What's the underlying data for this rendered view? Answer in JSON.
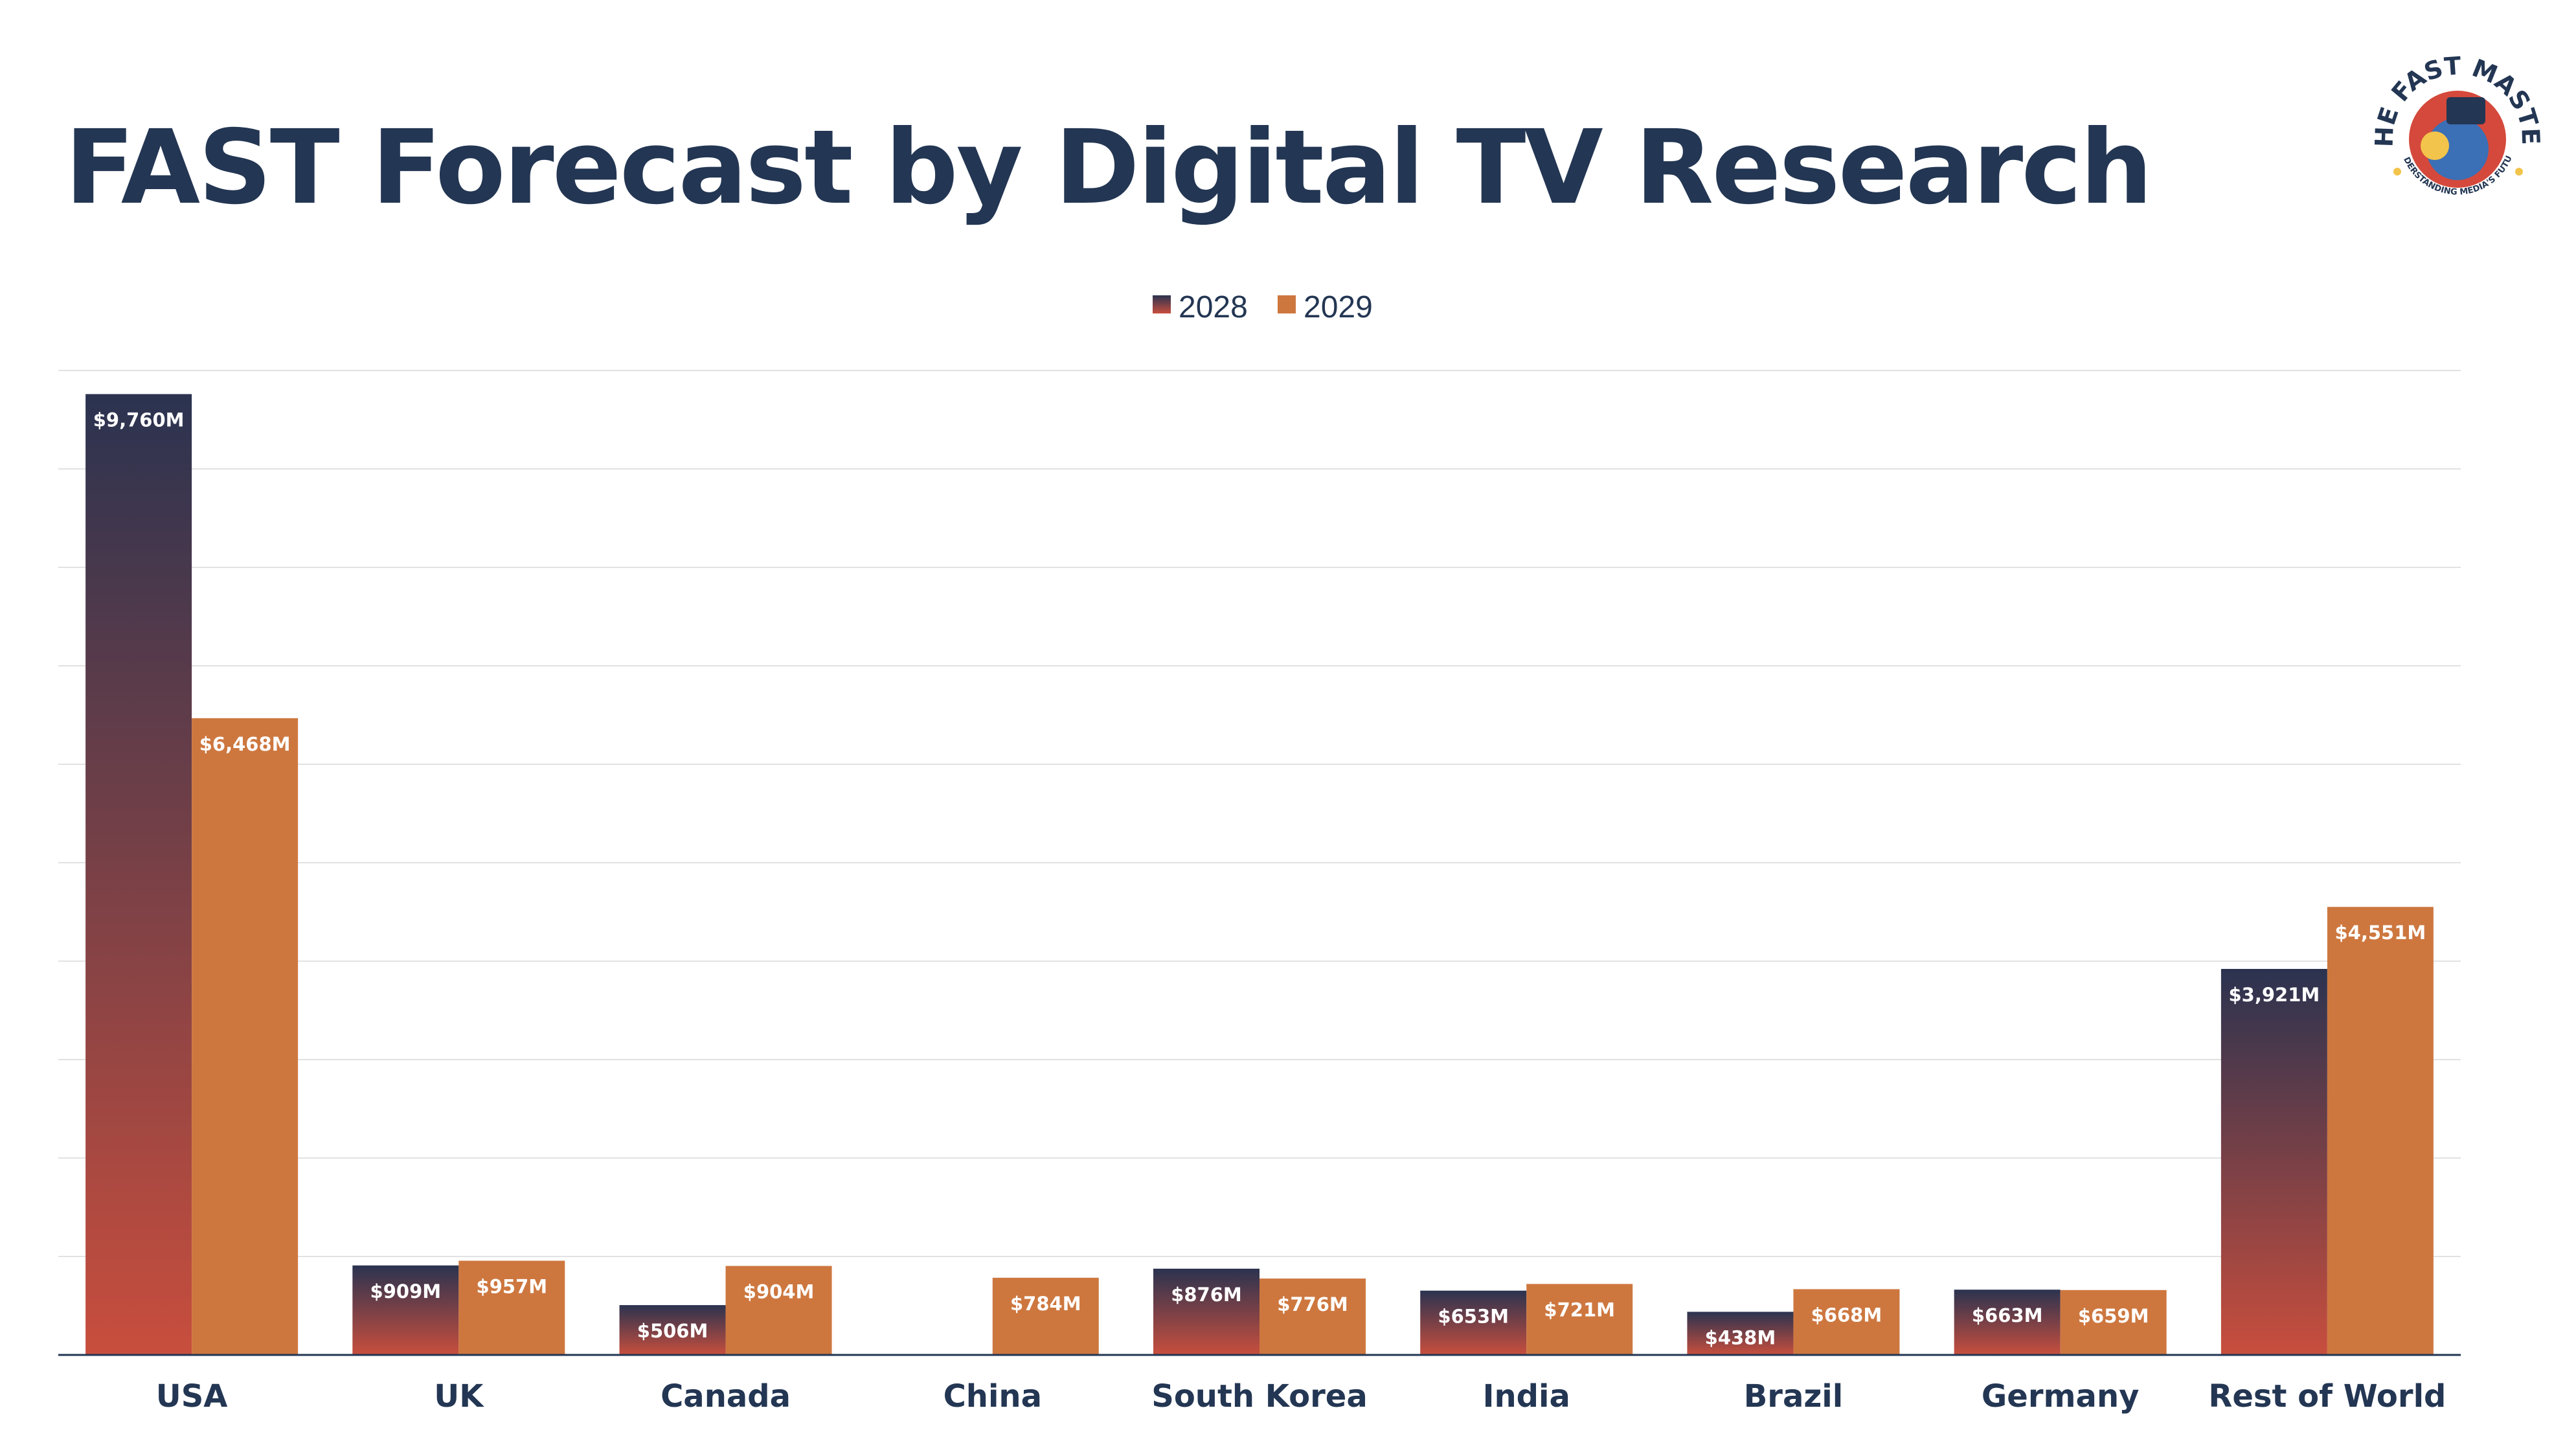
{
  "chart_data": {
    "type": "bar",
    "title": "FAST Forecast by Digital TV Research",
    "categories": [
      "USA",
      "UK",
      "Canada",
      "China",
      "South Korea",
      "India",
      "Brazil",
      "Germany",
      "Rest of World"
    ],
    "series": [
      {
        "name": "2028",
        "values": [
          9760,
          909,
          506,
          null,
          876,
          653,
          438,
          663,
          3921
        ],
        "labels": [
          "$9,760M",
          "$909M",
          "$506M",
          "",
          "$876M",
          "$653M",
          "$438M",
          "$663M",
          "$3,921M"
        ]
      },
      {
        "name": "2029",
        "values": [
          6468,
          957,
          904,
          784,
          776,
          721,
          668,
          659,
          4551
        ],
        "labels": [
          "$6,468M",
          "$957M",
          "$904M",
          "$784M",
          "$776M",
          "$721M",
          "$668M",
          "$659M",
          "$4,551M"
        ]
      }
    ],
    "ylim": [
      0,
      10000
    ],
    "unit": "$M",
    "grid": true,
    "legend": "top-center",
    "xlabel": "",
    "ylabel": ""
  },
  "colors": {
    "title": "#233653",
    "series_2028_top": "#2b3350",
    "series_2028_bottom": "#c84e3d",
    "series_2029": "#cd773f",
    "grid": "#e2e2e2",
    "axis": "#233653"
  },
  "logo": {
    "text_top": "THE FAST MASTER",
    "text_bottom": "UNDERSTANDING MEDIA'S FUTURE"
  }
}
